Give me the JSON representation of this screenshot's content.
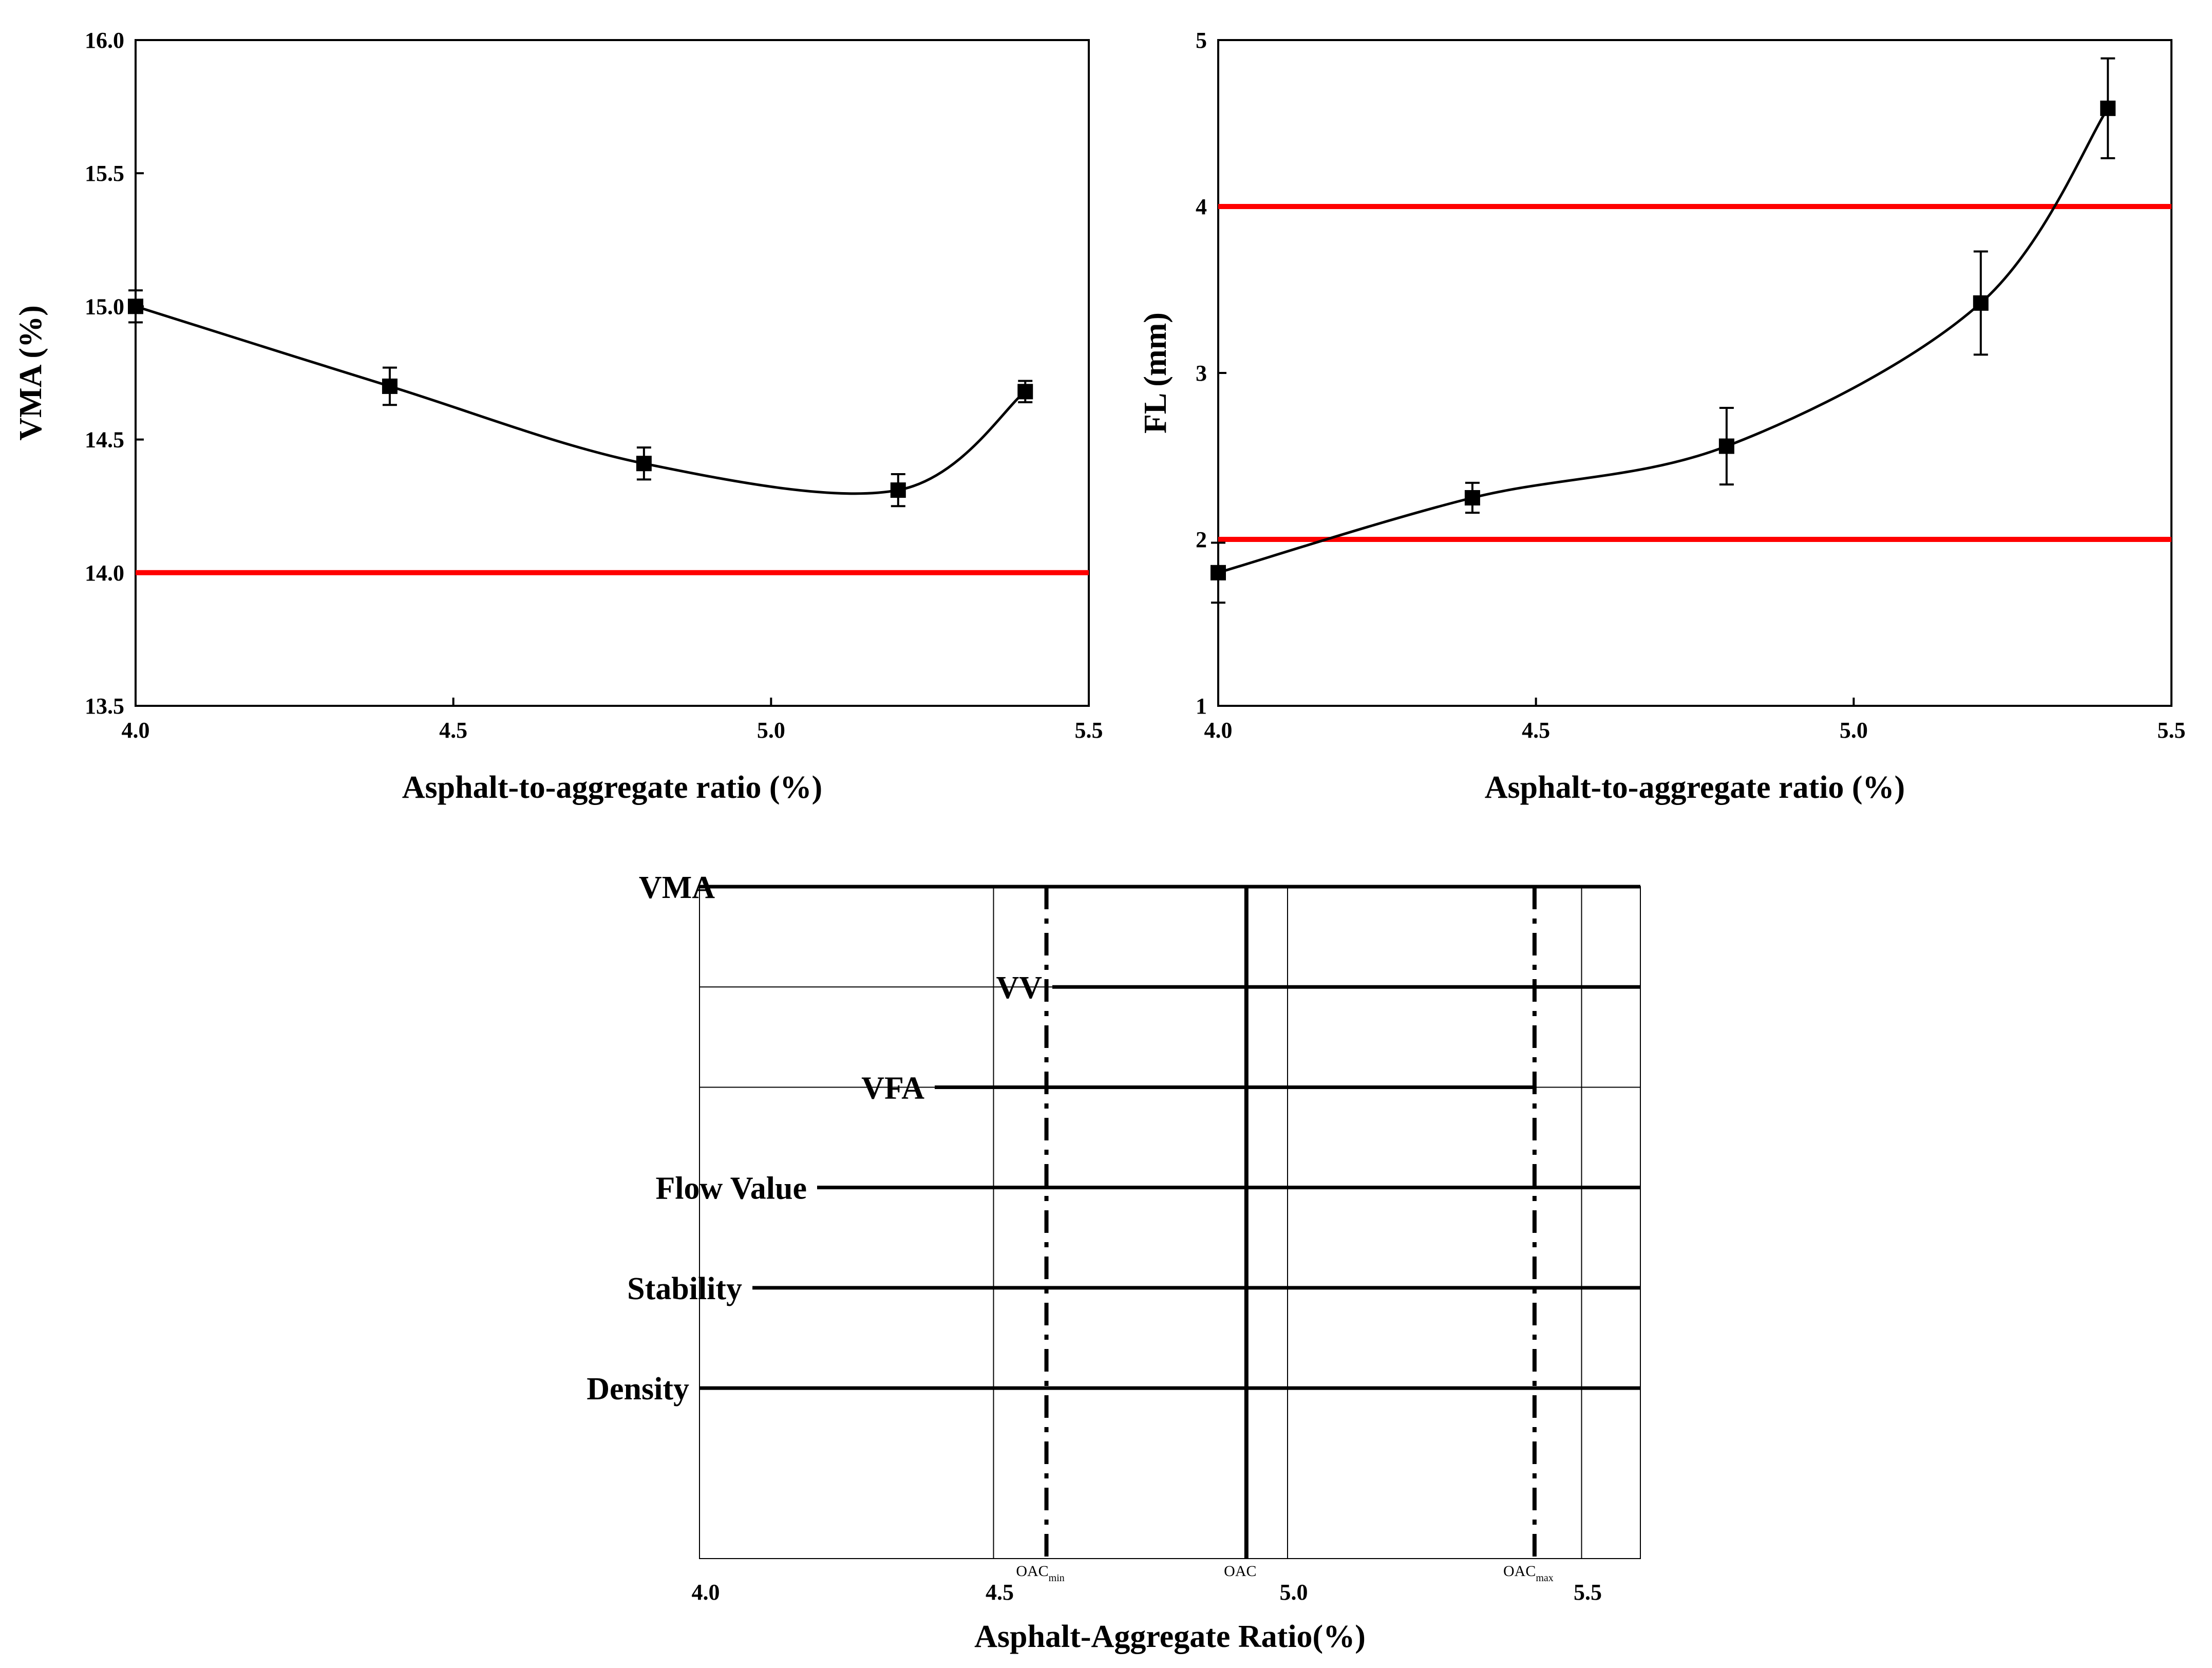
{
  "chart_data": [
    {
      "type": "line",
      "xlabel": "Asphalt-to-aggregate ratio (%)",
      "ylabel": "VMA (%)",
      "xlim": [
        4.0,
        5.5
      ],
      "ylim": [
        13.5,
        16.0
      ],
      "x_ticks": [
        "4.0",
        "4.5",
        "5.0",
        "5.5"
      ],
      "y_ticks": [
        "13.5",
        "14.0",
        "14.5",
        "15.0",
        "15.5",
        "16.0"
      ],
      "series": [
        {
          "x": [
            4.0,
            4.4,
            4.8,
            5.2,
            5.4
          ],
          "y": [
            15.0,
            14.7,
            14.41,
            14.31,
            14.68
          ],
          "err": [
            0.06,
            0.07,
            0.06,
            0.06,
            0.04
          ],
          "color": "#000000",
          "marker": "square",
          "smooth": true
        }
      ],
      "reference_lines": [
        {
          "y": 14.0,
          "color": "#ff0000"
        }
      ],
      "grid": false
    },
    {
      "type": "line",
      "xlabel": "Asphalt-to-aggregate ratio (%)",
      "ylabel": "FL (mm)",
      "xlim": [
        4.0,
        5.5
      ],
      "ylim": [
        1,
        5
      ],
      "x_ticks": [
        "4.0",
        "4.5",
        "5.0",
        "5.5"
      ],
      "y_ticks": [
        "1",
        "2",
        "3",
        "4",
        "5"
      ],
      "series": [
        {
          "x": [
            4.0,
            4.4,
            4.8,
            5.2,
            5.4
          ],
          "y": [
            1.8,
            2.25,
            2.56,
            3.42,
            4.59
          ],
          "err": [
            0.18,
            0.09,
            0.23,
            0.31,
            0.3
          ],
          "color": "#000000",
          "marker": "square",
          "smooth": true
        }
      ],
      "reference_lines": [
        {
          "y": 4,
          "color": "#ff0000"
        },
        {
          "y": 2,
          "color": "#ff0000"
        }
      ],
      "grid": false
    },
    {
      "type": "range",
      "xlabel": "Asphalt-Aggregate Ratio(%)",
      "xlim": [
        4.0,
        5.6
      ],
      "x_ticks": [
        "4.0",
        "4.5",
        "5.0",
        "5.5"
      ],
      "ranges": [
        {
          "label": "VMA",
          "x0": 4.0,
          "x1": 5.6
        },
        {
          "label": "VV",
          "x0": 4.6,
          "x1": 5.6
        },
        {
          "label": "VFA",
          "x0": 4.4,
          "x1": 5.42
        },
        {
          "label": "Flow Value",
          "x0": 4.2,
          "x1": 5.6
        },
        {
          "label": "Stability",
          "x0": 4.09,
          "x1": 5.6
        },
        {
          "label": "Density",
          "x0": 4.0,
          "x1": 5.6
        }
      ],
      "markers": [
        {
          "base": "OAC",
          "sub": "min",
          "x": 4.59,
          "style": "dash-dot"
        },
        {
          "base": "OAC",
          "sub": "",
          "x": 4.93,
          "style": "solid"
        },
        {
          "base": "OAC",
          "sub": "max",
          "x": 5.42,
          "style": "dash-dot"
        }
      ],
      "grid": true
    }
  ]
}
